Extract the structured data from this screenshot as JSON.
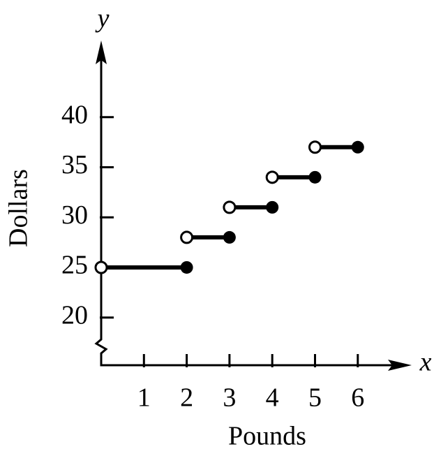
{
  "chart_data": {
    "type": "step",
    "x_label": "Pounds",
    "y_label": "Dollars",
    "x_axis_letter": "x",
    "y_axis_letter": "y",
    "x_start": [
      0,
      2,
      3,
      4,
      5
    ],
    "x_end": [
      2,
      3,
      4,
      5,
      6
    ],
    "values": [
      25,
      28,
      31,
      34,
      37
    ],
    "color": "#000000",
    "xlim": [
      0,
      7.25
    ],
    "ylim": [
      17.5,
      47.5
    ],
    "xticks": [
      1,
      2,
      3,
      4,
      5,
      6
    ],
    "yticks": [
      20,
      25,
      30,
      35,
      40
    ]
  }
}
